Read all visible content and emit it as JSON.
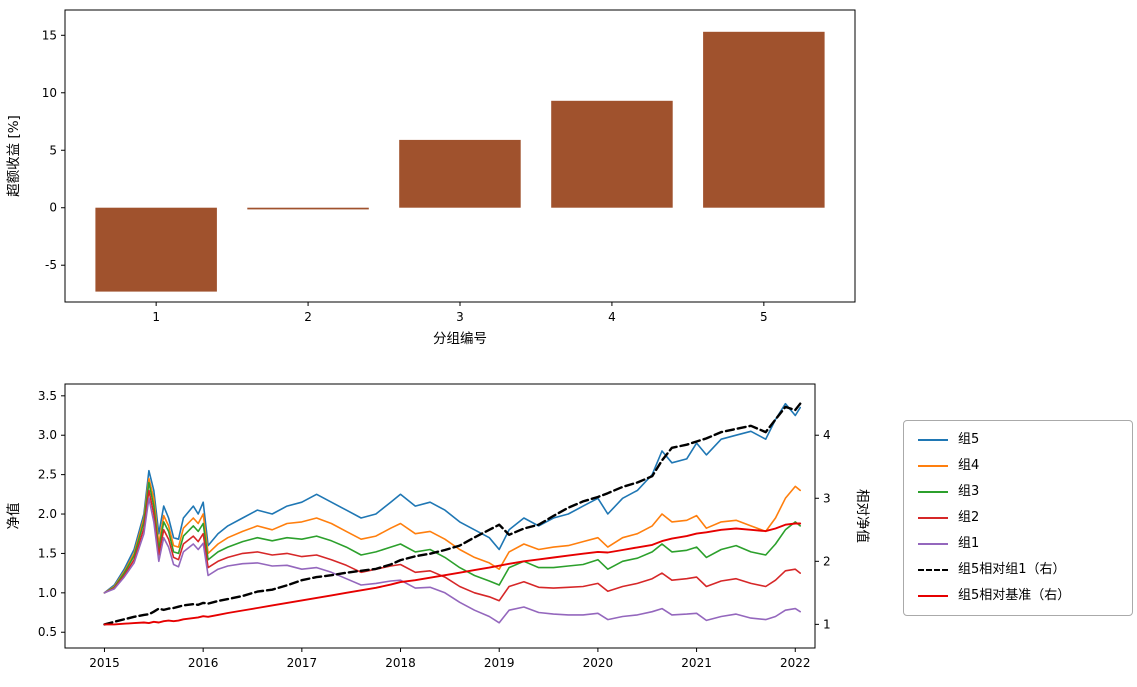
{
  "figure": {
    "background": "#ffffff",
    "text_color": "#000000",
    "spine_color": "#000000"
  },
  "chart_data": [
    {
      "type": "bar",
      "title": "",
      "categories": [
        "1",
        "2",
        "3",
        "4",
        "5"
      ],
      "values": [
        -7.3,
        -0.15,
        5.9,
        9.3,
        15.3
      ],
      "xlabel": "分组编号",
      "ylabel": "超额收益 [%]",
      "xlim": [
        0.4,
        5.6
      ],
      "ylim": [
        -8.2,
        17.2
      ],
      "yticks": [
        -5,
        0,
        5,
        10,
        15
      ],
      "bar_color": "#a0522d",
      "bar_width": 0.8,
      "grid": false,
      "legend": "none"
    },
    {
      "type": "line",
      "title": "",
      "xlabel": "",
      "ylabel_left": "净值",
      "ylabel_right": "相对净值",
      "xlim": [
        2014.6,
        2022.2
      ],
      "ylim_left": [
        0.3,
        3.65
      ],
      "ylim_right": [
        0.625,
        4.8125
      ],
      "xticks": [
        2015,
        2016,
        2017,
        2018,
        2019,
        2020,
        2021,
        2022
      ],
      "yticks_left": [
        0.5,
        1.0,
        1.5,
        2.0,
        2.5,
        3.0,
        3.5
      ],
      "yticks_right": [
        1,
        2,
        3,
        4
      ],
      "grid": false,
      "legend_position": "outside-right",
      "x": [
        2015.0,
        2015.1,
        2015.2,
        2015.3,
        2015.4,
        2015.45,
        2015.5,
        2015.55,
        2015.6,
        2015.65,
        2015.7,
        2015.75,
        2015.8,
        2015.9,
        2015.95,
        2016.0,
        2016.05,
        2016.15,
        2016.25,
        2016.4,
        2016.55,
        2016.7,
        2016.85,
        2017.0,
        2017.15,
        2017.3,
        2017.45,
        2017.6,
        2017.75,
        2017.9,
        2018.0,
        2018.15,
        2018.3,
        2018.45,
        2018.6,
        2018.75,
        2018.9,
        2019.0,
        2019.1,
        2019.25,
        2019.4,
        2019.55,
        2019.7,
        2019.85,
        2020.0,
        2020.1,
        2020.25,
        2020.4,
        2020.55,
        2020.65,
        2020.75,
        2020.9,
        2021.0,
        2021.1,
        2021.25,
        2021.4,
        2021.55,
        2021.7,
        2021.8,
        2021.9,
        2022.0,
        2022.05
      ],
      "series": [
        {
          "label": "组5",
          "color": "#1f77b4",
          "axis": "left",
          "dash": false,
          "width": 1.6,
          "values": [
            1.0,
            1.1,
            1.3,
            1.55,
            2.0,
            2.55,
            2.3,
            1.75,
            2.1,
            1.95,
            1.7,
            1.68,
            1.95,
            2.1,
            2.0,
            2.15,
            1.6,
            1.75,
            1.85,
            1.95,
            2.05,
            2.0,
            2.1,
            2.15,
            2.25,
            2.15,
            2.05,
            1.95,
            2.0,
            2.15,
            2.25,
            2.1,
            2.15,
            2.05,
            1.9,
            1.8,
            1.7,
            1.55,
            1.8,
            1.95,
            1.85,
            1.95,
            2.0,
            2.1,
            2.2,
            2.0,
            2.2,
            2.3,
            2.5,
            2.8,
            2.65,
            2.7,
            2.9,
            2.75,
            2.95,
            3.0,
            3.05,
            2.95,
            3.2,
            3.4,
            3.25,
            3.35
          ]
        },
        {
          "label": "组4",
          "color": "#ff7f0e",
          "axis": "left",
          "dash": false,
          "width": 1.6,
          "values": [
            1.0,
            1.08,
            1.27,
            1.5,
            1.95,
            2.45,
            2.2,
            1.62,
            1.98,
            1.85,
            1.6,
            1.58,
            1.82,
            1.95,
            1.88,
            2.0,
            1.5,
            1.62,
            1.7,
            1.78,
            1.85,
            1.8,
            1.88,
            1.9,
            1.95,
            1.88,
            1.78,
            1.68,
            1.72,
            1.82,
            1.88,
            1.75,
            1.78,
            1.68,
            1.55,
            1.45,
            1.38,
            1.3,
            1.52,
            1.62,
            1.55,
            1.58,
            1.6,
            1.65,
            1.7,
            1.58,
            1.7,
            1.75,
            1.85,
            2.0,
            1.9,
            1.92,
            1.98,
            1.82,
            1.9,
            1.92,
            1.85,
            1.78,
            1.95,
            2.2,
            2.35,
            2.3
          ]
        },
        {
          "label": "组3",
          "color": "#2ca02c",
          "axis": "left",
          "dash": false,
          "width": 1.6,
          "values": [
            1.0,
            1.07,
            1.25,
            1.47,
            1.9,
            2.4,
            2.1,
            1.55,
            1.9,
            1.78,
            1.52,
            1.5,
            1.72,
            1.85,
            1.78,
            1.88,
            1.42,
            1.52,
            1.58,
            1.65,
            1.7,
            1.66,
            1.7,
            1.68,
            1.72,
            1.66,
            1.58,
            1.48,
            1.52,
            1.58,
            1.62,
            1.52,
            1.55,
            1.45,
            1.32,
            1.22,
            1.15,
            1.1,
            1.32,
            1.4,
            1.32,
            1.32,
            1.34,
            1.36,
            1.42,
            1.3,
            1.4,
            1.44,
            1.52,
            1.62,
            1.52,
            1.54,
            1.58,
            1.45,
            1.55,
            1.6,
            1.52,
            1.48,
            1.62,
            1.8,
            1.9,
            1.85
          ]
        },
        {
          "label": "组2",
          "color": "#d62728",
          "axis": "left",
          "dash": false,
          "width": 1.6,
          "values": [
            1.0,
            1.06,
            1.22,
            1.42,
            1.82,
            2.3,
            2.0,
            1.48,
            1.8,
            1.68,
            1.45,
            1.42,
            1.62,
            1.72,
            1.65,
            1.75,
            1.32,
            1.4,
            1.45,
            1.5,
            1.52,
            1.48,
            1.5,
            1.46,
            1.48,
            1.42,
            1.35,
            1.26,
            1.3,
            1.34,
            1.36,
            1.26,
            1.28,
            1.2,
            1.08,
            1.0,
            0.95,
            0.9,
            1.08,
            1.14,
            1.07,
            1.06,
            1.07,
            1.08,
            1.12,
            1.02,
            1.08,
            1.12,
            1.18,
            1.25,
            1.16,
            1.18,
            1.2,
            1.08,
            1.15,
            1.18,
            1.12,
            1.08,
            1.16,
            1.28,
            1.3,
            1.25
          ]
        },
        {
          "label": "组1",
          "color": "#9467bd",
          "axis": "left",
          "dash": false,
          "width": 1.6,
          "values": [
            1.0,
            1.05,
            1.2,
            1.38,
            1.75,
            2.2,
            1.9,
            1.4,
            1.7,
            1.58,
            1.36,
            1.33,
            1.52,
            1.62,
            1.55,
            1.63,
            1.22,
            1.3,
            1.34,
            1.37,
            1.38,
            1.34,
            1.35,
            1.3,
            1.32,
            1.26,
            1.18,
            1.1,
            1.12,
            1.15,
            1.16,
            1.06,
            1.07,
            1.0,
            0.88,
            0.78,
            0.7,
            0.62,
            0.78,
            0.82,
            0.75,
            0.73,
            0.72,
            0.72,
            0.74,
            0.66,
            0.7,
            0.72,
            0.76,
            0.8,
            0.72,
            0.73,
            0.74,
            0.65,
            0.7,
            0.73,
            0.68,
            0.66,
            0.7,
            0.78,
            0.8,
            0.76
          ]
        },
        {
          "label": "组5相对组1（右）",
          "color": "#000000",
          "axis": "right",
          "dash": true,
          "width": 2.4,
          "values": [
            1.0,
            1.04,
            1.08,
            1.12,
            1.15,
            1.16,
            1.2,
            1.25,
            1.23,
            1.25,
            1.26,
            1.28,
            1.3,
            1.32,
            1.31,
            1.34,
            1.33,
            1.37,
            1.4,
            1.45,
            1.52,
            1.55,
            1.62,
            1.7,
            1.75,
            1.78,
            1.82,
            1.85,
            1.88,
            1.95,
            2.02,
            2.08,
            2.12,
            2.18,
            2.25,
            2.38,
            2.5,
            2.58,
            2.42,
            2.52,
            2.58,
            2.72,
            2.85,
            2.95,
            3.02,
            3.08,
            3.18,
            3.25,
            3.35,
            3.6,
            3.8,
            3.85,
            3.9,
            3.95,
            4.05,
            4.1,
            4.15,
            4.05,
            4.25,
            4.45,
            4.4,
            4.5
          ]
        },
        {
          "label": "组5相对基准（右）",
          "color": "#e60000",
          "axis": "right",
          "dash": false,
          "width": 1.9,
          "values": [
            1.0,
            1.0,
            1.01,
            1.02,
            1.03,
            1.02,
            1.04,
            1.03,
            1.05,
            1.06,
            1.05,
            1.06,
            1.08,
            1.1,
            1.11,
            1.13,
            1.12,
            1.15,
            1.18,
            1.22,
            1.26,
            1.3,
            1.34,
            1.38,
            1.42,
            1.46,
            1.5,
            1.54,
            1.58,
            1.63,
            1.67,
            1.7,
            1.74,
            1.78,
            1.82,
            1.86,
            1.9,
            1.93,
            1.96,
            2.0,
            2.03,
            2.06,
            2.09,
            2.12,
            2.15,
            2.14,
            2.18,
            2.22,
            2.26,
            2.32,
            2.36,
            2.4,
            2.44,
            2.46,
            2.5,
            2.52,
            2.5,
            2.48,
            2.52,
            2.58,
            2.6,
            2.6
          ]
        }
      ]
    }
  ]
}
